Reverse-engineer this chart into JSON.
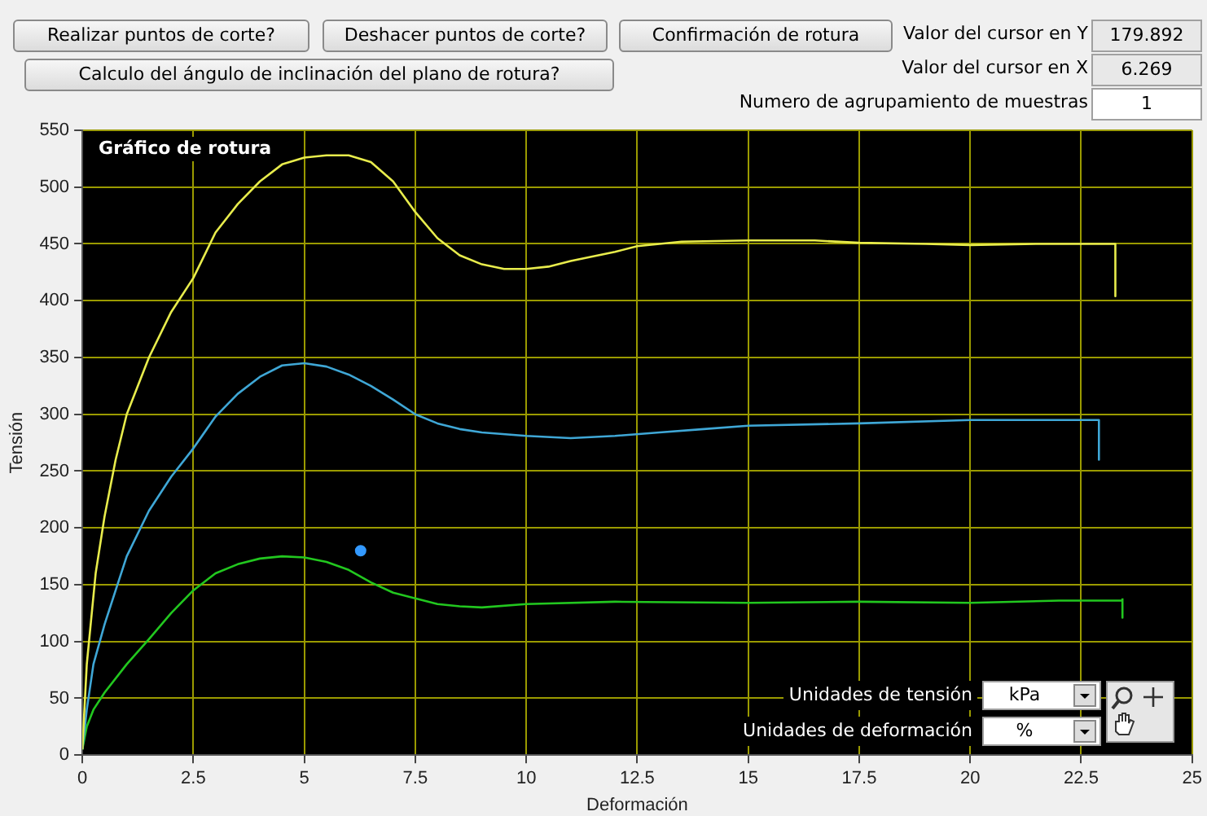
{
  "chart_data": {
    "type": "line",
    "title": "Gráfico de rotura",
    "xlabel": "Deformación",
    "ylabel": "Tensión",
    "xlim": [
      0,
      25
    ],
    "xticks": [
      0,
      2.5,
      5,
      7.5,
      10,
      12.5,
      15,
      17.5,
      20,
      22.5,
      25
    ],
    "ylim": [
      0,
      550
    ],
    "yticks": [
      0,
      50,
      100,
      150,
      200,
      250,
      300,
      350,
      400,
      450,
      500,
      550
    ],
    "grid": true,
    "legend": false,
    "marker": "none",
    "line_style": "solid",
    "series": [
      {
        "color": "#e8ec4c",
        "x": [
          0,
          0.1,
          0.3,
          0.5,
          0.75,
          1,
          1.5,
          2,
          2.5,
          3,
          3.5,
          4,
          4.5,
          5,
          5.5,
          6,
          6.5,
          7,
          7.5,
          8,
          8.5,
          9,
          9.5,
          10,
          10.5,
          11,
          12,
          12.5,
          13.5,
          15,
          16.5,
          17.5,
          19,
          20,
          21.5,
          23.27,
          23.27
        ],
        "values": [
          5,
          80,
          160,
          210,
          260,
          300,
          350,
          390,
          420,
          460,
          485,
          505,
          520,
          526,
          528,
          528,
          522,
          505,
          478,
          455,
          440,
          432,
          428,
          428,
          430,
          435,
          443,
          448,
          452,
          453,
          453,
          451,
          450,
          449,
          450,
          450,
          404
        ]
      },
      {
        "color": "#3fa7d6",
        "x": [
          0,
          0.1,
          0.25,
          0.5,
          0.75,
          1,
          1.5,
          2,
          2.5,
          3,
          3.5,
          4,
          4.5,
          5,
          5.5,
          6,
          6.5,
          7,
          7.5,
          8,
          8.5,
          9,
          10,
          11,
          12,
          13,
          14,
          15,
          17.5,
          20,
          22.9,
          22.9
        ],
        "values": [
          5,
          40,
          80,
          115,
          145,
          175,
          215,
          245,
          270,
          298,
          318,
          333,
          343,
          345,
          342,
          335,
          325,
          313,
          300,
          292,
          287,
          284,
          281,
          279,
          281,
          284,
          287,
          290,
          292,
          295,
          295,
          260
        ]
      },
      {
        "color": "#22c71f",
        "x": [
          0,
          0.1,
          0.25,
          0.5,
          1,
          1.5,
          2,
          2.5,
          3,
          3.5,
          4,
          4.5,
          5,
          5.5,
          6,
          6.5,
          7,
          7.5,
          8,
          8.5,
          9,
          10,
          12,
          15,
          17.5,
          20,
          22,
          23.43,
          23.43,
          23.43
        ],
        "values": [
          5,
          25,
          40,
          55,
          80,
          102,
          125,
          145,
          160,
          168,
          173,
          175,
          174,
          170,
          163,
          152,
          143,
          138,
          133,
          131,
          130,
          133,
          135,
          134,
          135,
          134,
          136,
          136,
          121,
          138
        ]
      },
      {
        "type": "scatter",
        "color": "#3399ff",
        "marker": "circle",
        "x": [
          6.269
        ],
        "values": [
          179.892
        ]
      }
    ],
    "annotations": [
      "Realizar puntos de corte?",
      "Deshacer puntos de corte?",
      "Confirmación de rotura",
      "Calculo del ángulo de inclinación del plano de rotura?",
      "Valor del cursor en Y",
      "179.892",
      "Valor del cursor en X",
      "6.269",
      "Numero de agrupamiento de muestras",
      "1",
      "Unidades de tensión",
      "kPa",
      "Unidades de deformación",
      "%"
    ]
  }
}
